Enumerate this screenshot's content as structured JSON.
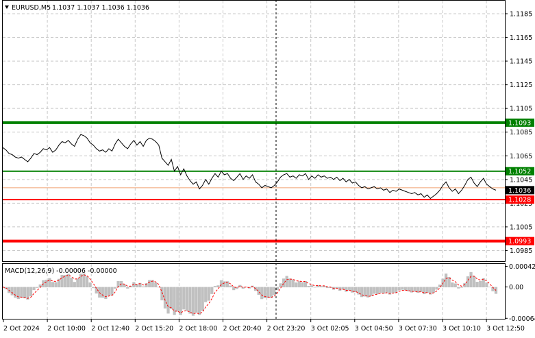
{
  "header": {
    "menu_icon": "triangle-down-icon",
    "symbol": "EURUSD,M5",
    "ohlc": "1.1037 1.1037 1.1036 1.1036"
  },
  "macd": {
    "label": "MACD(12,26,9) -0.00006 -0.00000",
    "hist_color": "#c0c0c0",
    "signal_color": "#ff0000",
    "axis": {
      "ymin": -0.00065,
      "ymax": 0.00047
    },
    "y_ticks": [
      {
        "label": "0.00042",
        "value": 0.00042
      },
      {
        "label": "0.00",
        "value": 0
      },
      {
        "label": "-0.00064",
        "value": -0.00064
      }
    ]
  },
  "chart_data": {
    "type": "line",
    "symbol": "EURUSD",
    "timeframe": "M5",
    "ylim": [
      1.0976,
      1.1196
    ],
    "y_ticks": [
      "1.1185",
      "1.1165",
      "1.1145",
      "1.1125",
      "1.1105",
      "1.1085",
      "1.1065",
      "1.1045",
      "1.1025",
      "1.1005",
      "1.0985"
    ],
    "x_ticks": [
      "2 Oct 2024",
      "2 Oct 10:00",
      "2 Oct 12:40",
      "2 Oct 15:20",
      "2 Oct 18:00",
      "2 Oct 20:40",
      "2 Oct 23:20",
      "3 Oct 02:05",
      "3 Oct 04:50",
      "3 Oct 07:30",
      "3 Oct 10:10",
      "3 Oct 12:50"
    ],
    "series": [
      {
        "values": [
          1.1072,
          1.107,
          1.1067,
          1.1066,
          1.1064,
          1.1063,
          1.1064,
          1.1062,
          1.106,
          1.1063,
          1.1067,
          1.1066,
          1.1068,
          1.1071,
          1.107,
          1.1072,
          1.1068,
          1.107,
          1.1074,
          1.1077,
          1.1076,
          1.1078,
          1.1075,
          1.1073,
          1.1079,
          1.1083,
          1.1082,
          1.108,
          1.1076,
          1.1074,
          1.1071,
          1.1069,
          1.107,
          1.1068,
          1.1071,
          1.1069,
          1.1075,
          1.1079,
          1.1076,
          1.1073,
          1.1071,
          1.1075,
          1.1078,
          1.1074,
          1.1077,
          1.1073,
          1.1078,
          1.108,
          1.1079,
          1.1077,
          1.1074,
          1.1063,
          1.106,
          1.1057,
          1.1062,
          1.1052,
          1.1056,
          1.1049,
          1.1054,
          1.1048,
          1.1044,
          1.1041,
          1.1043,
          1.1037,
          1.104,
          1.1045,
          1.1041,
          1.1046,
          1.105,
          1.1047,
          1.1052,
          1.1049,
          1.105,
          1.1046,
          1.1044,
          1.1047,
          1.105,
          1.1045,
          1.1048,
          1.1046,
          1.1049,
          1.1043,
          1.1041,
          1.1038,
          1.104,
          1.1039,
          1.1038,
          1.104,
          1.1043,
          1.1047,
          1.1049,
          1.105,
          1.1047,
          1.1048,
          1.1046,
          1.1049,
          1.1048,
          1.105,
          1.1045,
          1.1048,
          1.1046,
          1.1049,
          1.1047,
          1.1048,
          1.1046,
          1.1047,
          1.1045,
          1.1047,
          1.1044,
          1.1046,
          1.1043,
          1.1045,
          1.1042,
          1.1043,
          1.104,
          1.1038,
          1.1039,
          1.1037,
          1.1038,
          1.1039,
          1.1037,
          1.1038,
          1.1036,
          1.1037,
          1.1034,
          1.1036,
          1.1035,
          1.1037,
          1.1036,
          1.1035,
          1.1034,
          1.1033,
          1.1034,
          1.1032,
          1.1033,
          1.103,
          1.1032,
          1.1029,
          1.1031,
          1.1033,
          1.1036,
          1.104,
          1.1043,
          1.1038,
          1.1035,
          1.1037,
          1.1033,
          1.1036,
          1.104,
          1.1045,
          1.1047,
          1.1042,
          1.1039,
          1.1043,
          1.1046,
          1.1041,
          1.1039,
          1.1037,
          1.1036
        ],
        "color": "#000000"
      }
    ],
    "levels": [
      {
        "value": 1.1093,
        "label": "1.1093",
        "color": "#008000",
        "width": 4
      },
      {
        "value": 1.1052,
        "label": "1.1052",
        "color": "#008000",
        "width": 2
      },
      {
        "value": 1.1038,
        "label": "",
        "color": "#f0a070",
        "width": 1
      },
      {
        "value": 1.1028,
        "label": "1.1028",
        "color": "#ff0000",
        "width": 2
      },
      {
        "value": 1.0993,
        "label": "1.0993",
        "color": "#ff0000",
        "width": 4
      }
    ],
    "price_label": {
      "value": 1.1036,
      "label": "1.1036",
      "color": "#000000"
    },
    "grid": true,
    "period_separator_index": 6
  }
}
